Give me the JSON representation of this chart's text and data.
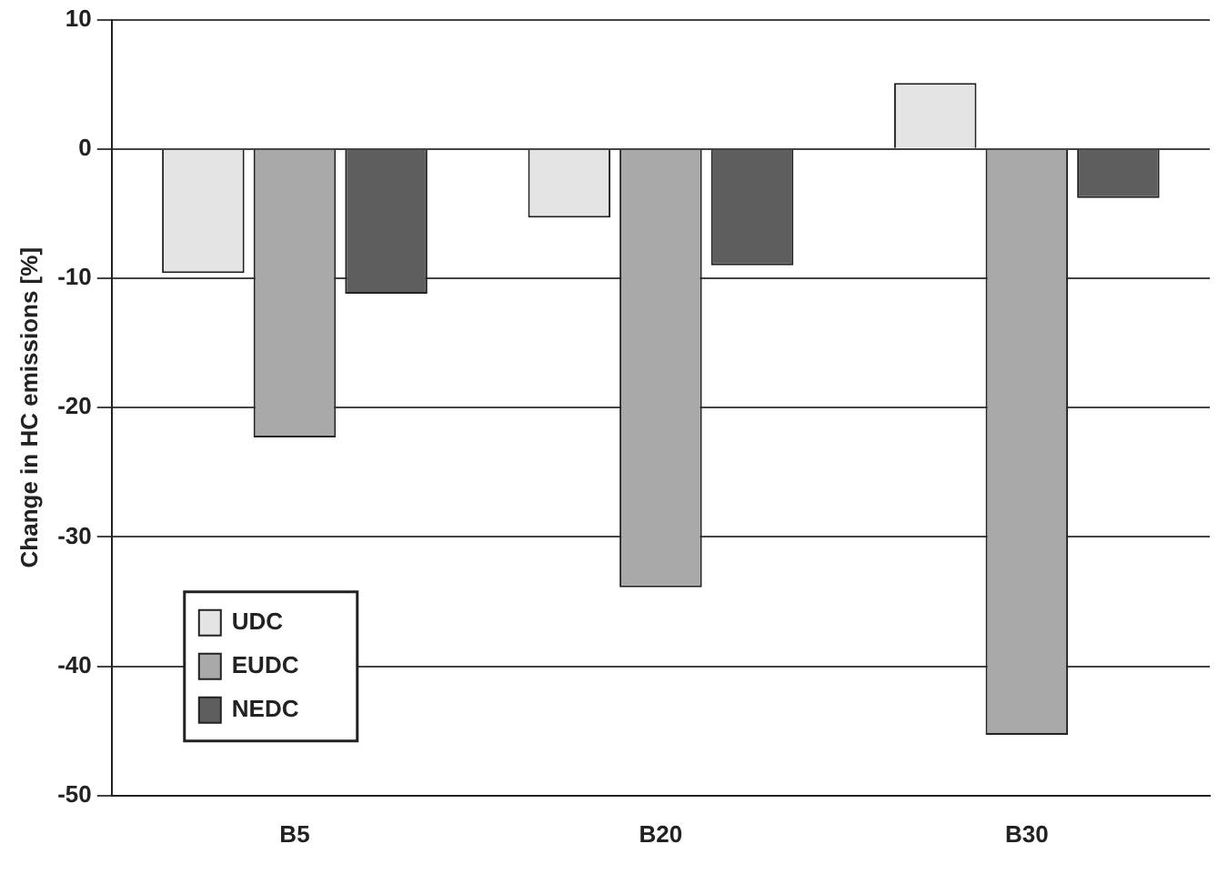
{
  "chart_data": {
    "type": "bar",
    "ylabel": "Change in HC emissions [%]",
    "categories": [
      "B5",
      "B20",
      "B30"
    ],
    "series": [
      {
        "name": "UDC",
        "color": "#e4e4e4",
        "values": [
          -9.6,
          -5.3,
          5.1
        ]
      },
      {
        "name": "EUDC",
        "color": "#a9a9a9",
        "values": [
          -22.3,
          -33.9,
          -45.3
        ]
      },
      {
        "name": "NEDC",
        "color": "#5e5e5e",
        "values": [
          -11.2,
          -9,
          -3.8
        ]
      }
    ],
    "ylim": [
      -50,
      10
    ],
    "yticks": [
      -50,
      -40,
      -30,
      -20,
      -10,
      0,
      10
    ],
    "grid": "y",
    "legend": "bottom left"
  }
}
